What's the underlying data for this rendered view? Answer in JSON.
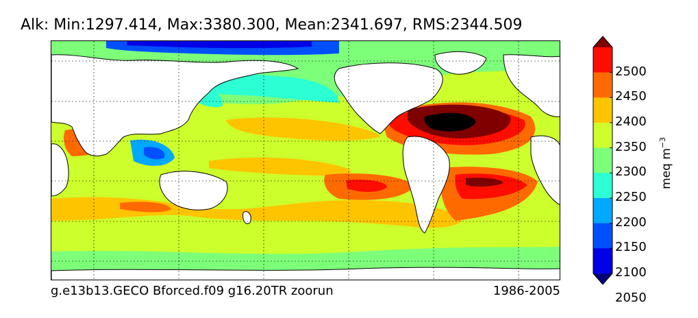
{
  "title": "Alk: Min:1297.414, Max:3380.300, Mean:2341.697, RMS:2344.509",
  "caption_left": "g.e13b13.GECO Bforced.f09 g16.20TR zoorun",
  "caption_right": "1986-2005",
  "colorbar": {
    "unit_label": "meq m",
    "unit_exponent": "−3",
    "tick_labels": [
      "2500",
      "2450",
      "2400",
      "2350",
      "2300",
      "2250",
      "2200",
      "2150",
      "2100",
      "2050"
    ],
    "levels": [
      2050,
      2100,
      2150,
      2200,
      2250,
      2300,
      2350,
      2400,
      2450,
      2500
    ],
    "colors": [
      "#000080",
      "#0000e6",
      "#0050ff",
      "#00a8ff",
      "#2bffd3",
      "#7dff7a",
      "#ccff2b",
      "#ffc400",
      "#ff6a00",
      "#ff0d00",
      "#800000"
    ],
    "extend": "both"
  },
  "map": {
    "land_color": "#ffffff",
    "field_colors": {
      "deep_blue": "#000080",
      "blue": "#0000e6",
      "mid_blue": "#0050ff",
      "light_blue": "#00a8ff",
      "cyan": "#2bffd3",
      "green": "#7dff7a",
      "yellow_green": "#ccff2b",
      "orange": "#ffc400",
      "dark_orange": "#ff6a00",
      "red": "#ff0d00",
      "dark_red": "#800000",
      "black": "#000000"
    },
    "grid": "dashed"
  }
}
